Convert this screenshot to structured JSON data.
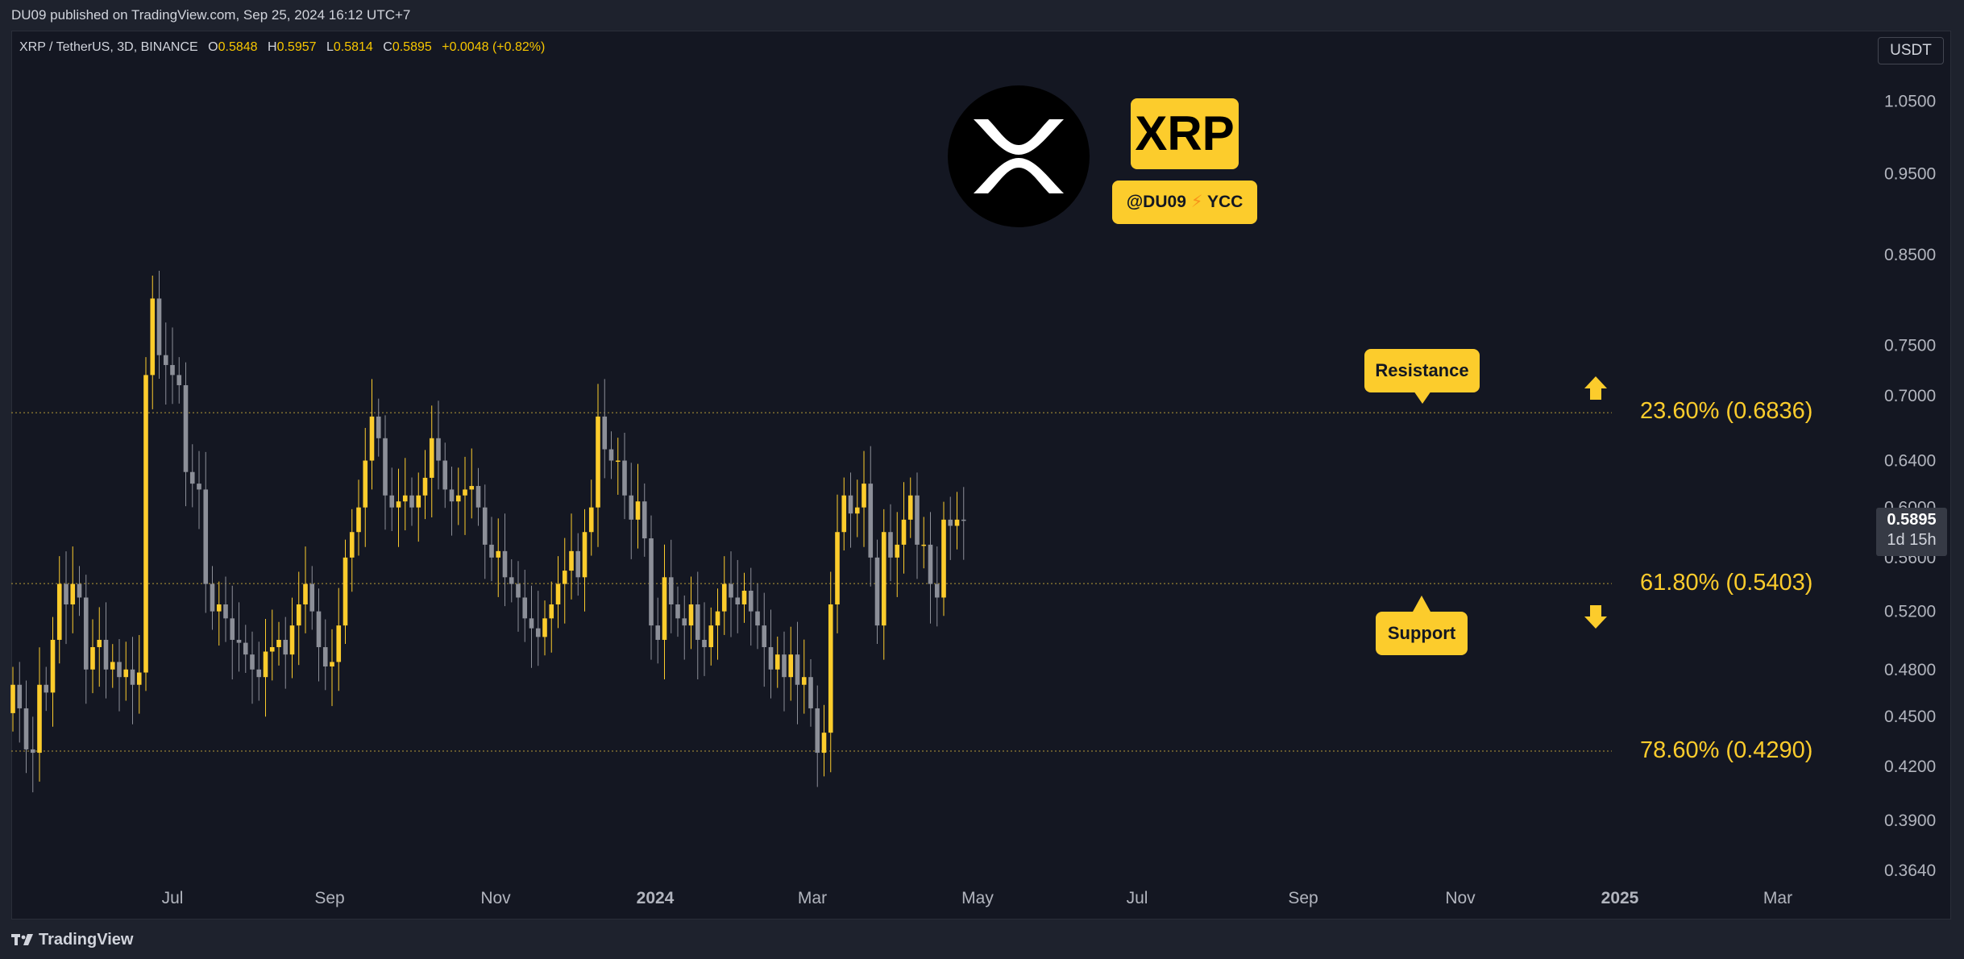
{
  "header": {
    "published_text": "DU09 published on TradingView.com, Sep 25, 2024 16:12 UTC+7"
  },
  "footer": {
    "brand": "TradingView"
  },
  "legend": {
    "symbol": "XRP / TetherUS, 3D, BINANCE",
    "o_key": "O",
    "o_val": "0.5848",
    "h_key": "H",
    "h_val": "0.5957",
    "l_key": "L",
    "l_val": "0.5814",
    "c_key": "C",
    "c_val": "0.5895",
    "change": "+0.0048 (+0.82%)"
  },
  "toolbar": {
    "currency": "USDT"
  },
  "price_badge": {
    "price": "0.5895",
    "countdown": "1d 15h"
  },
  "branding": {
    "coin": "XRP",
    "handle": "@DU09",
    "bolt": "⚡",
    "group": "YCC"
  },
  "annotations": {
    "resistance": "Resistance",
    "support": "Support",
    "fib_2360": "23.60% (0.6836)",
    "fib_6180": "61.80% (0.5403)",
    "fib_7860": "78.60% (0.4290)"
  },
  "colors": {
    "up": "#fccc2c",
    "down": "#8c8f98",
    "background": "#141722",
    "fib_line": "#b59a3a",
    "axis_text": "#b2b5be"
  },
  "chart_data": {
    "type": "candlestick",
    "y_scale": "log",
    "ylim": [
      0.36,
      1.08
    ],
    "y_ticks": [
      "1.0500",
      "0.9500",
      "0.8500",
      "0.7500",
      "0.7000",
      "0.6400",
      "0.6000",
      "0.5600",
      "0.5200",
      "0.4800",
      "0.4500",
      "0.4200",
      "0.3900",
      "0.3640"
    ],
    "x_ticks": [
      {
        "label": "Jul",
        "bold": false
      },
      {
        "label": "Sep",
        "bold": false
      },
      {
        "label": "Nov",
        "bold": false
      },
      {
        "label": "2024",
        "bold": true
      },
      {
        "label": "Mar",
        "bold": false
      },
      {
        "label": "May",
        "bold": false
      },
      {
        "label": "Jul",
        "bold": false
      },
      {
        "label": "Sep",
        "bold": false
      },
      {
        "label": "Nov",
        "bold": false
      },
      {
        "label": "2025",
        "bold": true
      },
      {
        "label": "Mar",
        "bold": false
      }
    ],
    "fib_levels": [
      {
        "label": "23.60%",
        "value": 0.6836
      },
      {
        "label": "61.80%",
        "value": 0.5403
      },
      {
        "label": "78.60%",
        "value": 0.429
      }
    ],
    "closes": [
      0.47,
      0.455,
      0.43,
      0.428,
      0.47,
      0.465,
      0.5,
      0.54,
      0.525,
      0.54,
      0.53,
      0.48,
      0.495,
      0.5,
      0.48,
      0.485,
      0.475,
      0.48,
      0.47,
      0.478,
      0.72,
      0.8,
      0.74,
      0.73,
      0.72,
      0.71,
      0.63,
      0.62,
      0.615,
      0.54,
      0.52,
      0.525,
      0.515,
      0.5,
      0.498,
      0.49,
      0.48,
      0.475,
      0.492,
      0.495,
      0.5,
      0.49,
      0.51,
      0.525,
      0.54,
      0.52,
      0.495,
      0.482,
      0.485,
      0.51,
      0.56,
      0.58,
      0.6,
      0.64,
      0.68,
      0.66,
      0.61,
      0.6,
      0.605,
      0.61,
      0.6,
      0.61,
      0.625,
      0.66,
      0.64,
      0.615,
      0.605,
      0.61,
      0.615,
      0.618,
      0.6,
      0.57,
      0.56,
      0.565,
      0.545,
      0.54,
      0.53,
      0.515,
      0.508,
      0.502,
      0.515,
      0.525,
      0.54,
      0.55,
      0.565,
      0.545,
      0.58,
      0.6,
      0.68,
      0.65,
      0.64,
      0.64,
      0.61,
      0.59,
      0.605,
      0.575,
      0.51,
      0.5,
      0.545,
      0.525,
      0.515,
      0.51,
      0.525,
      0.5,
      0.495,
      0.51,
      0.52,
      0.54,
      0.53,
      0.525,
      0.535,
      0.52,
      0.51,
      0.495,
      0.48,
      0.49,
      0.475,
      0.49,
      0.47,
      0.475,
      0.455,
      0.428,
      0.44,
      0.525,
      0.58,
      0.61,
      0.595,
      0.6,
      0.62,
      0.56,
      0.51,
      0.58,
      0.56,
      0.57,
      0.59,
      0.61,
      0.57,
      0.57,
      0.54,
      0.53,
      0.59,
      0.585,
      0.59,
      0.5895
    ]
  }
}
